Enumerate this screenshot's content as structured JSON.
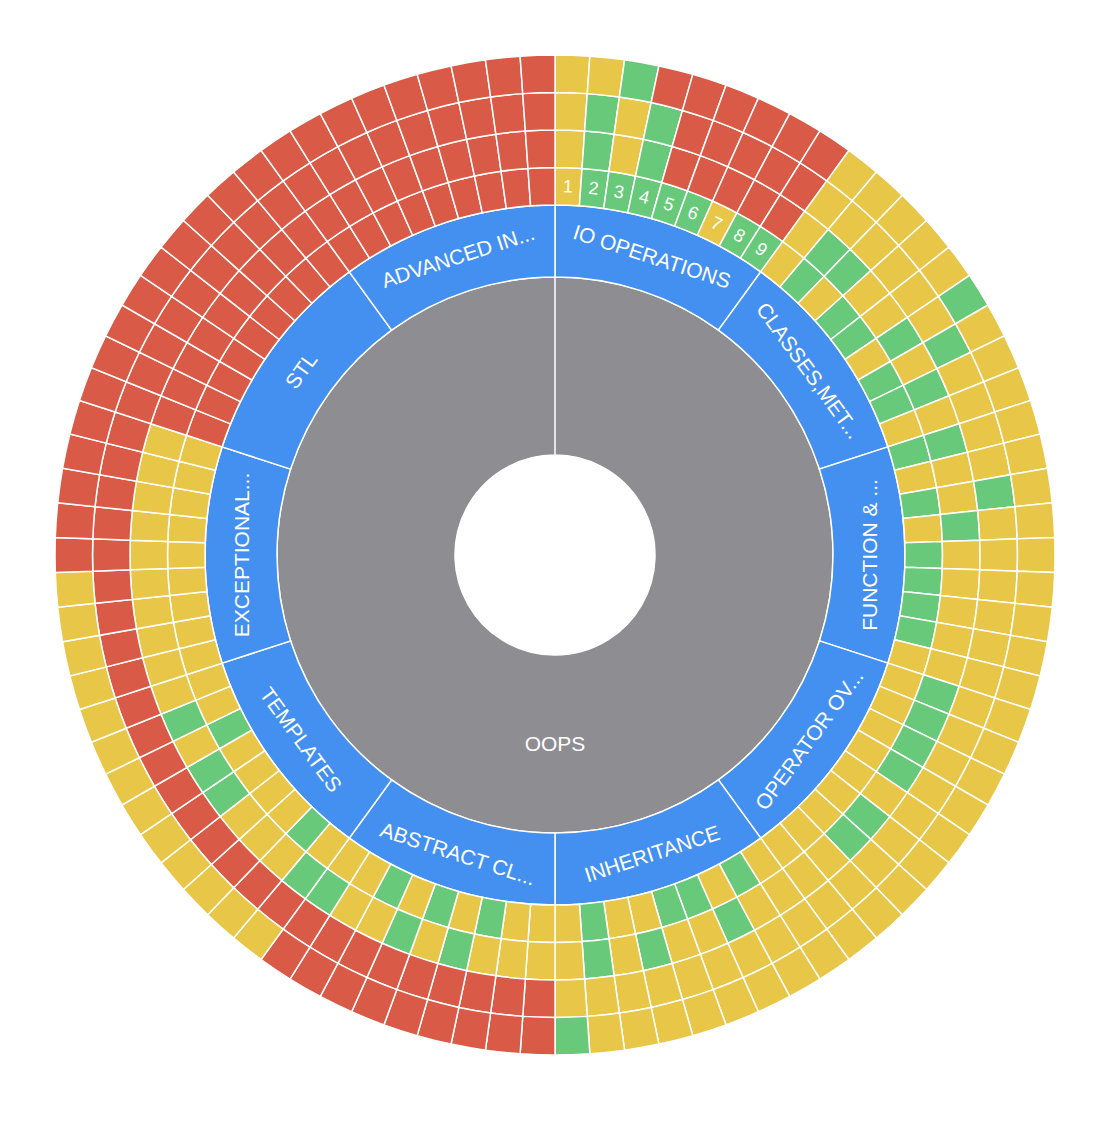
{
  "chart_data": {
    "type": "sunburst",
    "center": {
      "name": "OOPS",
      "color": "#8e8d92"
    },
    "topics": [
      {
        "name": "IO OPERATIONS",
        "color": "#4490f0",
        "values": [
          1,
          1,
          1,
          1,
          1,
          1,
          1,
          1,
          1
        ],
        "labels": [
          1,
          2,
          3,
          4,
          5,
          6,
          7,
          8,
          9
        ],
        "colors": [
          [
            "#e8c648",
            "#68c97a",
            "#68c97a",
            "#68c97a",
            "#68c97a",
            "#68c97a",
            "#e8c648",
            "#68c97a",
            "#68c97a"
          ],
          [
            "#e8c648",
            "#68c97a",
            "#e8c648",
            "#68c97a",
            "#d85a47",
            "#d85a47",
            "#d85a47",
            "#d85a47",
            "#d85a47"
          ],
          [
            "#e8c648",
            "#68c97a",
            "#e8c648",
            "#68c97a",
            "#d85a47",
            "#d85a47",
            "#d85a47",
            "#d85a47",
            "#d85a47"
          ],
          [
            "#e8c648",
            "#e8c648",
            "#68c97a",
            "#d85a47",
            "#d85a47",
            "#d85a47",
            "#d85a47",
            "#d85a47",
            "#d85a47"
          ]
        ]
      },
      {
        "name": "CLASSES,MET...",
        "color": "#4490f0",
        "values": [
          1,
          1,
          1,
          1,
          1,
          1,
          1,
          1,
          1
        ],
        "colors": [
          [
            "#e8c648",
            "#68c97a",
            "#e8c648",
            "#68c97a",
            "#68c97a",
            "#e8c648",
            "#68c97a",
            "#68c97a",
            "#e8c648"
          ],
          [
            "#e8c648",
            "#68c97a",
            "#68c97a",
            "#e8c648",
            "#e8c648",
            "#68c97a",
            "#e8c648",
            "#68c97a",
            "#e8c648"
          ],
          [
            "#e8c648",
            "#e8c648",
            "#e8c648",
            "#e8c648",
            "#e8c648",
            "#e8c648",
            "#68c97a",
            "#e8c648",
            "#e8c648"
          ],
          [
            "#e8c648",
            "#e8c648",
            "#e8c648",
            "#e8c648",
            "#e8c648",
            "#68c97a",
            "#e8c648",
            "#e8c648",
            "#e8c648"
          ]
        ]
      },
      {
        "name": "FUNCTION & ...",
        "color": "#4490f0",
        "values": [
          1,
          1,
          1,
          1,
          1,
          1,
          1,
          1,
          1
        ],
        "colors": [
          [
            "#68c97a",
            "#e8c648",
            "#68c97a",
            "#e8c648",
            "#68c97a",
            "#68c97a",
            "#68c97a",
            "#68c97a",
            "#e8c648"
          ],
          [
            "#68c97a",
            "#e8c648",
            "#e8c648",
            "#68c97a",
            "#e8c648",
            "#e8c648",
            "#e8c648",
            "#e8c648",
            "#e8c648"
          ],
          [
            "#e8c648",
            "#e8c648",
            "#68c97a",
            "#e8c648",
            "#e8c648",
            "#e8c648",
            "#e8c648",
            "#e8c648",
            "#e8c648"
          ],
          [
            "#e8c648",
            "#e8c648",
            "#e8c648",
            "#e8c648",
            "#e8c648",
            "#e8c648",
            "#e8c648",
            "#e8c648",
            "#e8c648"
          ]
        ]
      },
      {
        "name": "OPERATOR OV...",
        "color": "#4490f0",
        "values": [
          1,
          1,
          1,
          1,
          1,
          1,
          1,
          1,
          1
        ],
        "colors": [
          [
            "#e8c648",
            "#e8c648",
            "#e8c648",
            "#e8c648",
            "#e8c648",
            "#e8c648",
            "#e8c648",
            "#e8c648",
            "#e8c648"
          ],
          [
            "#68c97a",
            "#68c97a",
            "#68c97a",
            "#68c97a",
            "#e8c648",
            "#68c97a",
            "#68c97a",
            "#e8c648",
            "#e8c648"
          ],
          [
            "#e8c648",
            "#e8c648",
            "#e8c648",
            "#e8c648",
            "#e8c648",
            "#e8c648",
            "#e8c648",
            "#e8c648",
            "#e8c648"
          ],
          [
            "#e8c648",
            "#e8c648",
            "#e8c648",
            "#e8c648",
            "#e8c648",
            "#e8c648",
            "#e8c648",
            "#e8c648",
            "#e8c648"
          ]
        ]
      },
      {
        "name": "INHERITANCE",
        "color": "#4490f0",
        "values": [
          1,
          1,
          1,
          1,
          1,
          1,
          1,
          1,
          1
        ],
        "colors": [
          [
            "#e8c648",
            "#68c97a",
            "#e8c648",
            "#68c97a",
            "#68c97a",
            "#e8c648",
            "#e8c648",
            "#68c97a",
            "#e8c648"
          ],
          [
            "#e8c648",
            "#e8c648",
            "#68c97a",
            "#e8c648",
            "#e8c648",
            "#68c97a",
            "#e8c648",
            "#68c97a",
            "#e8c648"
          ],
          [
            "#e8c648",
            "#e8c648",
            "#e8c648",
            "#e8c648",
            "#e8c648",
            "#e8c648",
            "#e8c648",
            "#e8c648",
            "#e8c648"
          ],
          [
            "#e8c648",
            "#e8c648",
            "#e8c648",
            "#e8c648",
            "#e8c648",
            "#e8c648",
            "#e8c648",
            "#e8c648",
            "#68c97a"
          ]
        ]
      },
      {
        "name": "ABSTRACT CL...",
        "color": "#4490f0",
        "values": [
          1,
          1,
          1,
          1,
          1,
          1,
          1,
          1,
          1
        ],
        "colors": [
          [
            "#e8c648",
            "#e8c648",
            "#68c97a",
            "#e8c648",
            "#68c97a",
            "#e8c648",
            "#68c97a",
            "#e8c648",
            "#e8c648"
          ],
          [
            "#e8c648",
            "#e8c648",
            "#e8c648",
            "#68c97a",
            "#e8c648",
            "#68c97a",
            "#e8c648",
            "#e8c648",
            "#68c97a"
          ],
          [
            "#d85a47",
            "#d85a47",
            "#d85a47",
            "#d85a47",
            "#d85a47",
            "#d85a47",
            "#d85a47",
            "#d85a47",
            "#d85a47"
          ],
          [
            "#d85a47",
            "#d85a47",
            "#d85a47",
            "#d85a47",
            "#d85a47",
            "#d85a47",
            "#d85a47",
            "#d85a47",
            "#d85a47"
          ]
        ]
      },
      {
        "name": "TEMPLATES",
        "color": "#4490f0",
        "values": [
          1,
          1,
          1,
          1,
          1,
          1,
          1,
          1,
          1
        ],
        "colors": [
          [
            "#e8c648",
            "#68c97a",
            "#e8c648",
            "#e8c648",
            "#e8c648",
            "#e8c648",
            "#68c97a",
            "#e8c648",
            "#e8c648"
          ],
          [
            "#68c97a",
            "#e8c648",
            "#e8c648",
            "#e8c648",
            "#68c97a",
            "#68c97a",
            "#e8c648",
            "#68c97a",
            "#e8c648"
          ],
          [
            "#d85a47",
            "#d85a47",
            "#d85a47",
            "#d85a47",
            "#d85a47",
            "#d85a47",
            "#d85a47",
            "#d85a47",
            "#d85a47"
          ],
          [
            "#e8c648",
            "#e8c648",
            "#e8c648",
            "#e8c648",
            "#e8c648",
            "#e8c648",
            "#e8c648",
            "#e8c648",
            "#e8c648"
          ]
        ]
      },
      {
        "name": "EXCEPTIONAL...",
        "color": "#4490f0",
        "values": [
          1,
          1,
          1,
          1,
          1,
          1,
          1,
          1,
          1
        ],
        "colors": [
          [
            "#e8c648",
            "#e8c648",
            "#e8c648",
            "#e8c648",
            "#e8c648",
            "#e8c648",
            "#e8c648",
            "#e8c648",
            "#e8c648"
          ],
          [
            "#e8c648",
            "#e8c648",
            "#e8c648",
            "#e8c648",
            "#e8c648",
            "#e8c648",
            "#e8c648",
            "#e8c648",
            "#e8c648"
          ],
          [
            "#d85a47",
            "#d85a47",
            "#d85a47",
            "#d85a47",
            "#d85a47",
            "#d85a47",
            "#d85a47",
            "#d85a47",
            "#d85a47"
          ],
          [
            "#e8c648",
            "#e8c648",
            "#e8c648",
            "#e8c648",
            "#d85a47",
            "#d85a47",
            "#d85a47",
            "#d85a47",
            "#d85a47"
          ]
        ]
      },
      {
        "name": "STL",
        "color": "#4490f0",
        "values": [
          1,
          1,
          1,
          1,
          1,
          1,
          1,
          1,
          1
        ],
        "colors": [
          [
            "#d85a47",
            "#d85a47",
            "#d85a47",
            "#d85a47",
            "#d85a47",
            "#d85a47",
            "#d85a47",
            "#d85a47",
            "#d85a47"
          ],
          [
            "#d85a47",
            "#d85a47",
            "#d85a47",
            "#d85a47",
            "#d85a47",
            "#d85a47",
            "#d85a47",
            "#d85a47",
            "#d85a47"
          ],
          [
            "#d85a47",
            "#d85a47",
            "#d85a47",
            "#d85a47",
            "#d85a47",
            "#d85a47",
            "#d85a47",
            "#d85a47",
            "#d85a47"
          ],
          [
            "#d85a47",
            "#d85a47",
            "#d85a47",
            "#d85a47",
            "#d85a47",
            "#d85a47",
            "#d85a47",
            "#d85a47",
            "#d85a47"
          ]
        ]
      },
      {
        "name": "ADVANCED IN...",
        "color": "#4490f0",
        "values": [
          1,
          1,
          1,
          1,
          1,
          1,
          1,
          1,
          1
        ],
        "colors": [
          [
            "#d85a47",
            "#d85a47",
            "#d85a47",
            "#d85a47",
            "#d85a47",
            "#d85a47",
            "#d85a47",
            "#d85a47",
            "#d85a47"
          ],
          [
            "#d85a47",
            "#d85a47",
            "#d85a47",
            "#d85a47",
            "#d85a47",
            "#d85a47",
            "#d85a47",
            "#d85a47",
            "#d85a47"
          ],
          [
            "#d85a47",
            "#d85a47",
            "#d85a47",
            "#d85a47",
            "#d85a47",
            "#d85a47",
            "#d85a47",
            "#d85a47",
            "#d85a47"
          ],
          [
            "#d85a47",
            "#d85a47",
            "#d85a47",
            "#d85a47",
            "#d85a47",
            "#d85a47",
            "#d85a47",
            "#d85a47",
            "#d85a47"
          ]
        ]
      }
    ]
  }
}
